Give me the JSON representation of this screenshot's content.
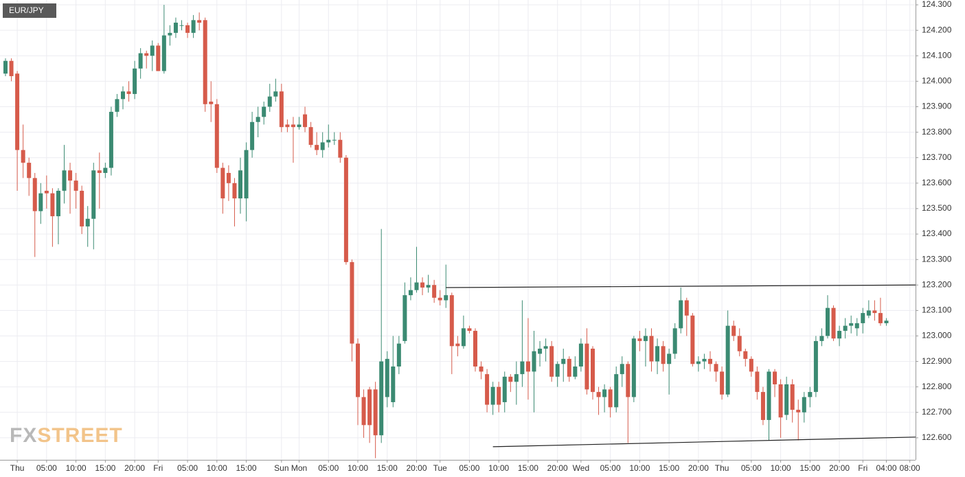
{
  "chart_data": {
    "type": "candlestick",
    "title": "EUR/JPY",
    "watermark": {
      "first": "FX",
      "second": "STREET"
    },
    "up_color": "#3b8a72",
    "down_color": "#d65b4b",
    "grid": true,
    "categories": [
      null,
      null,
      "Thu",
      null,
      null,
      null,
      null,
      "05:00",
      null,
      null,
      null,
      null,
      "10:00",
      null,
      null,
      null,
      null,
      "15:00",
      null,
      null,
      null,
      null,
      "20:00",
      null,
      null,
      null,
      "Fri",
      null,
      null,
      null,
      null,
      "05:00",
      null,
      null,
      null,
      null,
      "10:00",
      null,
      null,
      null,
      null,
      "15:00",
      null,
      null,
      null,
      null,
      null,
      "Sun",
      null,
      null,
      "Mon",
      null,
      null,
      null,
      null,
      "05:00",
      null,
      null,
      null,
      null,
      "10:00",
      null,
      null,
      null,
      null,
      "15:00",
      null,
      null,
      null,
      null,
      "20:00",
      null,
      null,
      null,
      "Tue",
      null,
      null,
      null,
      null,
      "05:00",
      null,
      null,
      null,
      null,
      "10:00",
      null,
      null,
      null,
      null,
      "15:00",
      null,
      null,
      null,
      null,
      "20:00",
      null,
      null,
      null,
      "Wed",
      null,
      null,
      null,
      null,
      "05:00",
      null,
      null,
      null,
      null,
      "10:00",
      null,
      null,
      null,
      null,
      "15:00",
      null,
      null,
      null,
      null,
      "20:00",
      null,
      null,
      null,
      "Thu",
      null,
      null,
      null,
      null,
      "05:00",
      null,
      null,
      null,
      null,
      "10:00",
      null,
      null,
      null,
      null,
      "15:00",
      null,
      null,
      null,
      null,
      "20:00",
      null,
      null,
      null,
      "Fri",
      null,
      null,
      null,
      "04:00",
      null,
      null,
      null,
      "08:00"
    ],
    "open": [
      124.03,
      124.08,
      124.03,
      123.73,
      123.68,
      123.62,
      123.49,
      123.57,
      123.56,
      123.47,
      123.57,
      123.65,
      123.61,
      123.57,
      123.43,
      123.46,
      123.65,
      123.64,
      123.66,
      123.88,
      123.93,
      123.96,
      123.95,
      124.05,
      124.11,
      124.1,
      124.14,
      124.04,
      124.18,
      124.19,
      124.22,
      124.22,
      124.19,
      124.24,
      124.24,
      123.92,
      123.91,
      123.66,
      123.64,
      123.6,
      123.54,
      123.54,
      123.73,
      123.84,
      123.86,
      123.9,
      123.94,
      123.96,
      123.83,
      123.83,
      123.82,
      123.87,
      123.82,
      123.75,
      123.73,
      123.76,
      123.77,
      123.77,
      123.7,
      123.29,
      122.97,
      122.76,
      122.79,
      122.79,
      122.61,
      122.76,
      122.74,
      122.88,
      122.98,
      123.16,
      123.18,
      123.21,
      123.19,
      123.2,
      123.15,
      123.14,
      123.16,
      122.97,
      122.96,
      123.03,
      123.02,
      122.88,
      122.85,
      122.73,
      122.8,
      122.74,
      122.84,
      122.82,
      122.85,
      122.9,
      122.86,
      122.93,
      122.95,
      122.96,
      122.84,
      122.89,
      122.91,
      122.84,
      122.88,
      122.97,
      122.95,
      122.78,
      122.76,
      122.79,
      122.72,
      122.85,
      122.89,
      122.76,
      122.99,
      122.98,
      123.0,
      122.9,
      122.96,
      122.89,
      122.93,
      123.03,
      123.14,
      123.08,
      122.89,
      122.9,
      122.91,
      122.89,
      122.86,
      122.77,
      123.04,
      123.0,
      122.94,
      122.91,
      122.86,
      122.78,
      122.67,
      122.86,
      122.81,
      122.69,
      122.81,
      122.71,
      122.7,
      122.76,
      122.78,
      122.98,
      123.0,
      123.11,
      122.99,
      123.02,
      123.04,
      123.03,
      123.05,
      123.08,
      123.1,
      123.09,
      123.05,
      null,
      null,
      null,
      null
    ],
    "high": [
      124.09,
      124.09,
      124.04,
      123.83,
      123.7,
      123.64,
      123.6,
      123.63,
      123.58,
      123.58,
      123.75,
      123.68,
      123.64,
      123.59,
      123.51,
      123.68,
      123.72,
      123.68,
      123.9,
      123.95,
      123.98,
      124.0,
      124.08,
      124.13,
      124.12,
      124.16,
      124.15,
      124.3,
      124.22,
      124.25,
      124.24,
      124.23,
      124.26,
      124.27,
      124.25,
      124.0,
      123.93,
      123.68,
      123.67,
      123.62,
      123.7,
      123.76,
      123.88,
      123.9,
      123.92,
      123.99,
      124.01,
      123.99,
      123.85,
      123.86,
      123.86,
      123.9,
      123.84,
      123.8,
      123.8,
      123.83,
      123.8,
      123.8,
      123.71,
      123.3,
      122.99,
      122.79,
      122.8,
      122.82,
      123.42,
      122.94,
      123.0,
      123.0,
      123.21,
      123.23,
      123.35,
      123.23,
      123.24,
      123.22,
      123.18,
      123.28,
      123.17,
      123.0,
      123.08,
      123.04,
      123.03,
      122.9,
      122.87,
      122.82,
      122.82,
      122.86,
      122.85,
      122.9,
      123.14,
      123.07,
      123.02,
      122.98,
      122.99,
      122.98,
      122.9,
      122.95,
      122.92,
      122.92,
      122.99,
      123.03,
      122.96,
      122.8,
      122.81,
      122.8,
      122.88,
      122.92,
      122.9,
      123.0,
      123.02,
      123.03,
      123.03,
      122.99,
      122.98,
      122.95,
      123.05,
      123.19,
      123.15,
      123.09,
      122.92,
      122.93,
      122.94,
      122.9,
      122.88,
      123.1,
      123.06,
      123.03,
      122.95,
      122.92,
      122.88,
      122.8,
      122.87,
      122.87,
      122.83,
      122.84,
      122.83,
      122.75,
      122.78,
      122.8,
      123.0,
      123.03,
      123.16,
      123.12,
      123.04,
      123.07,
      123.08,
      123.07,
      123.11,
      123.14,
      123.14,
      123.15,
      123.07,
      null,
      null,
      null,
      null
    ],
    "low": [
      124.02,
      124.0,
      123.57,
      123.62,
      123.55,
      123.31,
      123.44,
      123.5,
      123.35,
      123.36,
      123.52,
      123.48,
      123.5,
      123.4,
      123.35,
      123.34,
      123.5,
      123.62,
      123.63,
      123.86,
      123.89,
      123.92,
      123.93,
      124.01,
      124.05,
      124.04,
      124.04,
      124.03,
      124.14,
      124.17,
      124.2,
      124.17,
      124.17,
      124.2,
      123.88,
      123.84,
      123.64,
      123.48,
      123.53,
      123.43,
      123.48,
      123.45,
      123.7,
      123.78,
      123.83,
      123.88,
      123.92,
      123.8,
      123.8,
      123.68,
      123.81,
      123.8,
      123.74,
      123.71,
      123.7,
      123.74,
      123.75,
      123.68,
      123.28,
      122.9,
      122.65,
      122.6,
      122.58,
      122.52,
      122.58,
      122.72,
      122.72,
      122.85,
      122.97,
      123.14,
      123.17,
      123.16,
      123.17,
      123.13,
      123.12,
      123.11,
      122.85,
      122.92,
      122.95,
      123.01,
      122.86,
      122.83,
      122.7,
      122.69,
      122.7,
      122.7,
      122.78,
      122.73,
      122.8,
      122.75,
      122.7,
      122.88,
      122.9,
      122.82,
      122.8,
      122.82,
      122.82,
      122.83,
      122.86,
      122.77,
      122.75,
      122.69,
      122.7,
      122.68,
      122.7,
      122.8,
      122.58,
      122.74,
      122.94,
      122.88,
      122.86,
      122.85,
      122.86,
      122.77,
      122.91,
      123.01,
      123.0,
      122.88,
      122.86,
      122.87,
      122.86,
      122.82,
      122.75,
      122.76,
      122.98,
      122.92,
      122.88,
      122.84,
      122.75,
      122.65,
      122.59,
      122.76,
      122.6,
      122.67,
      122.66,
      122.59,
      122.66,
      122.72,
      122.76,
      122.96,
      122.99,
      122.98,
      122.96,
      122.99,
      123.01,
      123.0,
      123.01,
      123.07,
      123.06,
      123.04,
      123.04,
      null,
      null,
      null,
      null
    ],
    "close": [
      124.08,
      124.02,
      123.73,
      123.68,
      123.62,
      123.49,
      123.56,
      123.56,
      123.47,
      123.57,
      123.65,
      123.61,
      123.57,
      123.43,
      123.46,
      123.65,
      123.64,
      123.66,
      123.88,
      123.93,
      123.96,
      123.95,
      124.05,
      124.11,
      124.1,
      124.14,
      124.04,
      124.18,
      124.19,
      124.23,
      124.22,
      124.19,
      124.24,
      124.23,
      123.91,
      123.91,
      123.66,
      123.54,
      123.6,
      123.54,
      123.65,
      123.73,
      123.84,
      123.86,
      123.9,
      123.94,
      123.96,
      123.82,
      123.82,
      123.82,
      123.83,
      123.82,
      123.75,
      123.73,
      123.76,
      123.77,
      123.77,
      123.7,
      123.29,
      122.97,
      122.76,
      122.65,
      122.65,
      122.61,
      122.9,
      122.91,
      122.88,
      122.97,
      123.16,
      123.18,
      123.21,
      123.19,
      123.2,
      123.15,
      123.14,
      123.16,
      122.96,
      122.96,
      123.03,
      123.02,
      122.88,
      122.86,
      122.73,
      122.8,
      122.73,
      122.84,
      122.82,
      122.85,
      122.9,
      122.86,
      122.94,
      122.95,
      122.96,
      122.84,
      122.89,
      122.91,
      122.84,
      122.88,
      122.97,
      122.79,
      122.78,
      122.76,
      122.79,
      122.72,
      122.85,
      122.89,
      122.76,
      122.99,
      122.98,
      123.0,
      122.9,
      122.96,
      122.89,
      122.93,
      123.03,
      123.14,
      123.08,
      122.89,
      122.9,
      122.91,
      122.89,
      122.86,
      122.77,
      123.04,
      123.0,
      122.94,
      122.91,
      122.86,
      122.78,
      122.67,
      122.86,
      122.81,
      122.68,
      122.81,
      122.71,
      122.7,
      122.76,
      122.78,
      122.98,
      123.0,
      123.11,
      122.99,
      123.02,
      123.04,
      123.05,
      123.05,
      123.09,
      123.1,
      123.09,
      123.05,
      123.06,
      null,
      null,
      null,
      null
    ],
    "trendlines": [
      {
        "x": [
          75,
          155
        ],
        "y": [
          123.19,
          123.2
        ]
      },
      {
        "x": [
          83,
          155
        ],
        "y": [
          122.565,
          122.603
        ]
      }
    ],
    "ylim": [
      122.527,
      124.319
    ],
    "yticks": [
      {
        "value": 122.6,
        "label": "122.600"
      },
      {
        "value": 122.7,
        "label": "122.700"
      },
      {
        "value": 122.8,
        "label": "122.800"
      },
      {
        "value": 122.9,
        "label": "122.900"
      },
      {
        "value": 123.0,
        "label": "123.000"
      },
      {
        "value": 123.1,
        "label": "123.100"
      },
      {
        "value": 123.2,
        "label": "123.200"
      },
      {
        "value": 123.3,
        "label": "123.300"
      },
      {
        "value": 123.4,
        "label": "123.400"
      },
      {
        "value": 123.5,
        "label": "123.500"
      },
      {
        "value": 123.6,
        "label": "123.600"
      },
      {
        "value": 123.7,
        "label": "123.700"
      },
      {
        "value": 123.8,
        "label": "123.800"
      },
      {
        "value": 123.9,
        "label": "123.900"
      },
      {
        "value": 124.0,
        "label": "124.000"
      },
      {
        "value": 124.1,
        "label": "124.100"
      },
      {
        "value": 124.2,
        "label": "124.200"
      },
      {
        "value": 124.3,
        "label": "124.300"
      }
    ]
  }
}
